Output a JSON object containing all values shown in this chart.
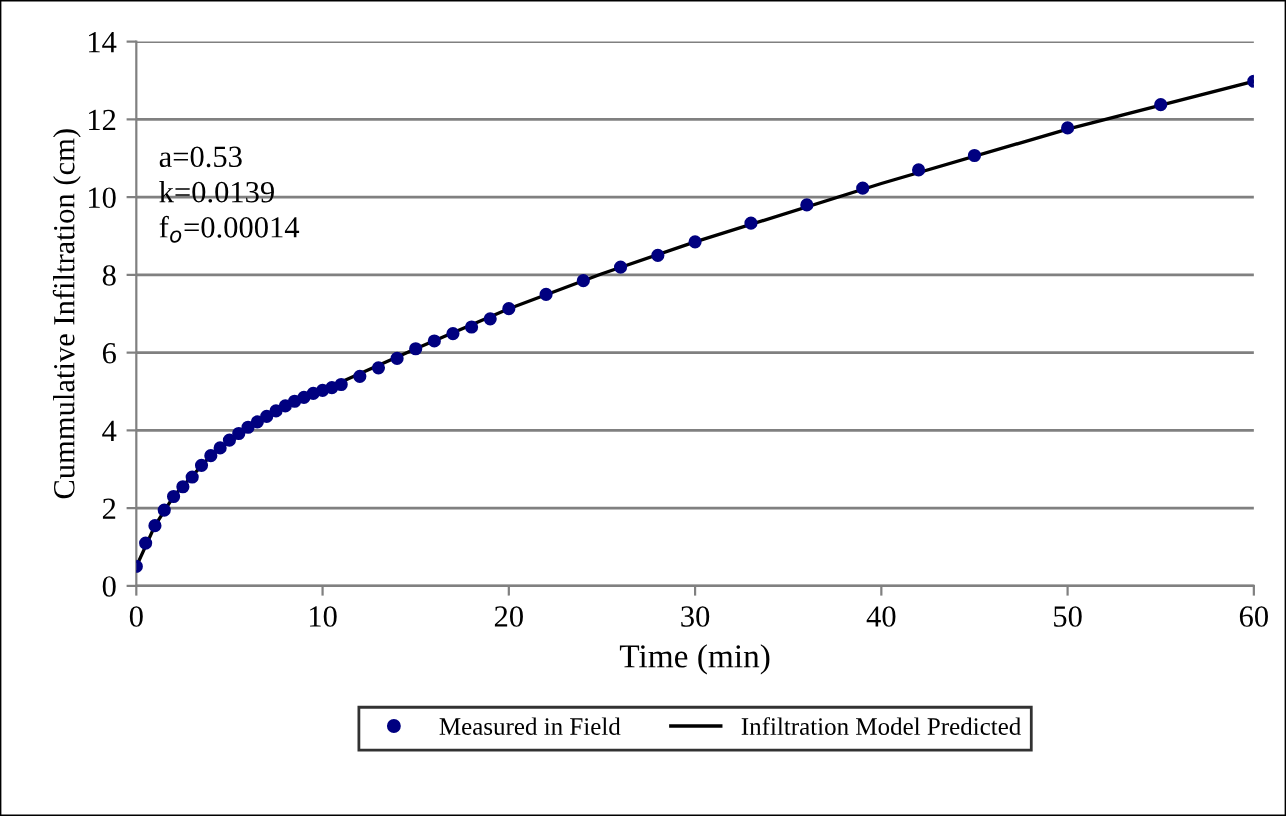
{
  "chart_data": {
    "type": "scatter",
    "xlabel": "Time (min)",
    "ylabel": "Cummulative Infiltration (cm)",
    "xlim": [
      0,
      60
    ],
    "xticks": [
      0,
      10,
      20,
      30,
      40,
      50,
      60
    ],
    "ylim": [
      0,
      14
    ],
    "yticks": [
      0,
      2,
      4,
      6,
      8,
      10,
      12,
      14
    ],
    "grid": "y",
    "legend": "bottom",
    "annotations": [
      "a=0.53",
      "k=0.0139",
      "f$_{o}$=0.00014"
    ],
    "series": [
      {
        "name": "Measured in Field",
        "marker": "circle",
        "color": "#000080",
        "x": [
          0,
          0.5,
          1,
          1.5,
          2,
          2.5,
          3,
          3.5,
          4,
          4.5,
          5,
          5.5,
          6,
          6.5,
          7,
          7.5,
          8,
          8.5,
          9,
          9.5,
          10,
          10.5,
          11,
          12,
          13,
          14,
          15,
          16,
          17,
          18,
          19,
          20,
          22,
          24,
          26,
          28,
          30,
          33,
          36,
          39,
          42,
          45,
          50,
          55,
          60
        ],
        "values": [
          0.5,
          1.1,
          1.55,
          1.95,
          2.3,
          2.55,
          2.8,
          3.1,
          3.35,
          3.55,
          3.75,
          3.92,
          4.08,
          4.22,
          4.36,
          4.5,
          4.63,
          4.75,
          4.85,
          4.95,
          5.03,
          5.1,
          5.18,
          5.39,
          5.61,
          5.85,
          6.1,
          6.3,
          6.49,
          6.66,
          6.87,
          7.13,
          7.5,
          7.85,
          8.2,
          8.5,
          8.85,
          9.33,
          9.8,
          10.23,
          10.7,
          11.07,
          11.78,
          12.38,
          12.98
        ]
      },
      {
        "name": "Infiltration Model Predicted",
        "type": "line",
        "color": "#000000",
        "marker": "none",
        "line_style": "solid",
        "x": [
          0,
          1,
          2,
          4,
          6,
          8,
          10,
          15,
          20,
          25,
          30,
          40,
          50,
          60
        ],
        "values": [
          0.5,
          1.55,
          2.3,
          3.35,
          4.08,
          4.63,
          5.03,
          6.1,
          7.13,
          8.03,
          8.85,
          10.35,
          11.75,
          12.98
        ]
      }
    ]
  }
}
